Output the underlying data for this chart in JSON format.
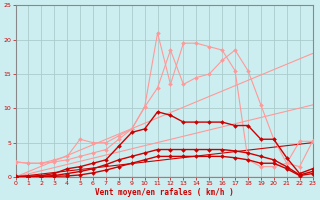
{
  "bg_color": "#cceef0",
  "grid_color": "#aacccc",
  "xlabel": "Vent moyen/en rafales ( km/h )",
  "xlim": [
    0,
    23
  ],
  "ylim": [
    0,
    25
  ],
  "yticks": [
    0,
    5,
    10,
    15,
    20,
    25
  ],
  "xticks": [
    0,
    1,
    2,
    3,
    4,
    5,
    6,
    7,
    8,
    9,
    10,
    11,
    12,
    13,
    14,
    15,
    16,
    17,
    18,
    19,
    20,
    21,
    22,
    23
  ],
  "lines": [
    {
      "x": [
        0,
        23
      ],
      "y": [
        0,
        18.0
      ],
      "color": "#ff9999",
      "marker": null,
      "linewidth": 0.8
    },
    {
      "x": [
        0,
        23
      ],
      "y": [
        0,
        10.5
      ],
      "color": "#ff9999",
      "marker": null,
      "linewidth": 0.8
    },
    {
      "x": [
        0,
        1,
        2,
        3,
        4,
        5,
        6,
        7,
        8,
        9,
        10,
        11,
        12,
        13,
        14,
        15,
        16,
        17,
        18,
        19,
        20,
        21,
        22,
        23
      ],
      "y": [
        2.2,
        2.0,
        2.0,
        2.5,
        3.0,
        5.5,
        5.0,
        5.0,
        6.0,
        7.0,
        10.2,
        21.0,
        13.5,
        19.5,
        19.5,
        19.0,
        18.5,
        15.5,
        2.5,
        1.5,
        1.5,
        2.0,
        5.2,
        5.2
      ],
      "color": "#ff9999",
      "marker": "D",
      "markersize": 2.0,
      "linewidth": 0.8
    },
    {
      "x": [
        0,
        1,
        2,
        3,
        4,
        5,
        6,
        7,
        8,
        9,
        10,
        11,
        12,
        13,
        14,
        15,
        16,
        17,
        18,
        19,
        20,
        21,
        22,
        23
      ],
      "y": [
        2.2,
        2.0,
        2.0,
        2.2,
        2.5,
        3.0,
        3.5,
        4.0,
        5.5,
        7.0,
        10.2,
        13.0,
        18.5,
        13.5,
        14.5,
        15.0,
        17.0,
        18.5,
        15.5,
        10.5,
        5.5,
        2.0,
        1.5,
        5.2
      ],
      "color": "#ff9999",
      "marker": "D",
      "markersize": 2.0,
      "linewidth": 0.8
    },
    {
      "x": [
        0,
        23
      ],
      "y": [
        0,
        5.0
      ],
      "color": "#cc0000",
      "marker": null,
      "linewidth": 0.8
    },
    {
      "x": [
        0,
        1,
        2,
        3,
        4,
        5,
        6,
        7,
        8,
        9,
        10,
        11,
        12,
        13,
        14,
        15,
        16,
        17,
        18,
        19,
        20,
        21,
        22,
        23
      ],
      "y": [
        0.1,
        0.1,
        0.2,
        0.5,
        1.2,
        1.5,
        2.0,
        2.5,
        4.5,
        6.5,
        7.0,
        9.5,
        9.0,
        8.0,
        8.0,
        8.0,
        8.0,
        7.5,
        7.5,
        5.5,
        5.5,
        2.8,
        0.5,
        1.2
      ],
      "color": "#cc0000",
      "marker": "D",
      "markersize": 2.0,
      "linewidth": 1.0
    },
    {
      "x": [
        0,
        1,
        2,
        3,
        4,
        5,
        6,
        7,
        8,
        9,
        10,
        11,
        12,
        13,
        14,
        15,
        16,
        17,
        18,
        19,
        20,
        21,
        22,
        23
      ],
      "y": [
        0.05,
        0.05,
        0.1,
        0.2,
        0.5,
        0.8,
        1.2,
        1.8,
        2.5,
        3.0,
        3.5,
        4.0,
        4.0,
        4.0,
        4.0,
        4.0,
        4.0,
        3.8,
        3.5,
        3.0,
        2.5,
        1.5,
        0.3,
        0.8
      ],
      "color": "#cc0000",
      "marker": "D",
      "markersize": 2.0,
      "linewidth": 1.0
    },
    {
      "x": [
        0,
        1,
        2,
        3,
        4,
        5,
        6,
        7,
        8,
        9,
        10,
        11,
        12,
        13,
        14,
        15,
        16,
        17,
        18,
        19,
        20,
        21,
        22,
        23
      ],
      "y": [
        0.02,
        0.02,
        0.05,
        0.1,
        0.15,
        0.3,
        0.6,
        1.0,
        1.5,
        2.0,
        2.5,
        3.0,
        3.0,
        3.0,
        3.0,
        3.0,
        3.0,
        2.8,
        2.5,
        2.0,
        2.0,
        1.2,
        0.2,
        0.5
      ],
      "color": "#cc0000",
      "marker": "D",
      "markersize": 2.0,
      "linewidth": 1.0
    }
  ]
}
